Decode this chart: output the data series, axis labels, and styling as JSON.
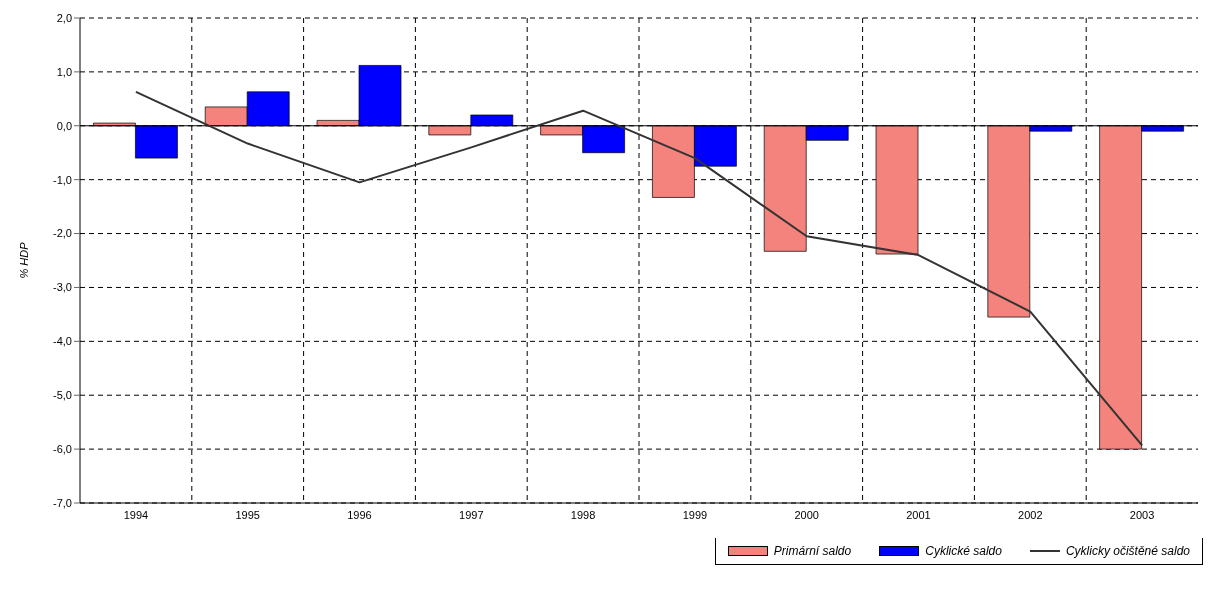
{
  "chart_data": {
    "type": "bar",
    "ylabel": "% HDP",
    "categories": [
      "1994",
      "1995",
      "1996",
      "1997",
      "1998",
      "1999",
      "2000",
      "2001",
      "2002",
      "2003"
    ],
    "series": [
      {
        "name": "Primární saldo",
        "color": "#f4837d",
        "values": [
          0.05,
          0.35,
          0.1,
          -0.17,
          -0.17,
          -1.33,
          -2.33,
          -2.38,
          -3.55,
          -6.0
        ]
      },
      {
        "name": "Cyklické saldo",
        "color": "#0000ff",
        "values": [
          -0.6,
          0.63,
          1.12,
          0.2,
          -0.5,
          -0.75,
          -0.27,
          0.0,
          -0.1,
          -0.1
        ]
      },
      {
        "name": "Cyklicky očištěné saldo",
        "type": "line",
        "color": "#333333",
        "values": [
          0.63,
          -0.33,
          -1.05,
          -0.4,
          0.28,
          -0.6,
          -2.05,
          -2.4,
          -3.45,
          -5.93
        ]
      }
    ],
    "ylim": [
      -7,
      2
    ],
    "yticks": [
      {
        "value": -7,
        "label": "-7,0"
      },
      {
        "value": -6,
        "label": "-6,0"
      },
      {
        "value": -5,
        "label": "-5,0"
      },
      {
        "value": -4,
        "label": "-4,0"
      },
      {
        "value": -3,
        "label": "-3,0"
      },
      {
        "value": -2,
        "label": "-2,0"
      },
      {
        "value": -1,
        "label": "-1,0"
      },
      {
        "value": 0,
        "label": "0,0"
      },
      {
        "value": 1,
        "label": "1,0"
      },
      {
        "value": 2,
        "label": "2,0"
      }
    ],
    "ref_lines": [
      {
        "axis": "y",
        "value": 0,
        "color": "#000000"
      }
    ],
    "grid": true,
    "legend": "bottom right",
    "marker": "none",
    "line_style": "solid"
  }
}
